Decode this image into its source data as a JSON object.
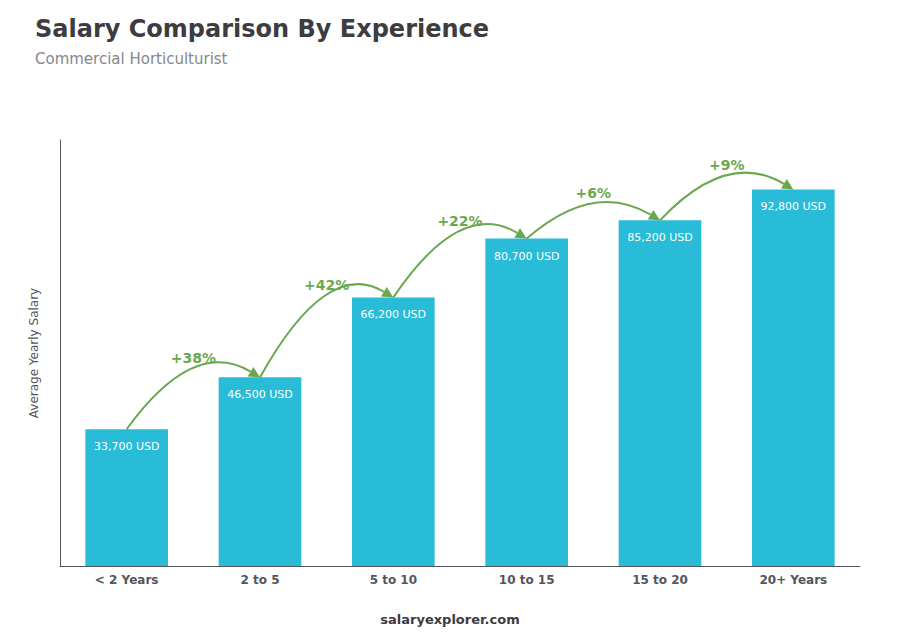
{
  "chart_data": {
    "type": "bar",
    "title": "Salary Comparison By Experience",
    "subtitle": "Commercial Horticulturist",
    "categories": [
      "< 2 Years",
      "2 to 5",
      "5 to 10",
      "10 to 15",
      "15 to 20",
      "20+ Years"
    ],
    "values": [
      33700,
      46500,
      66200,
      80700,
      85200,
      92800
    ],
    "value_labels": [
      "33,700 USD",
      "46,500 USD",
      "66,200 USD",
      "80,700 USD",
      "85,200 USD",
      "92,800 USD"
    ],
    "data_labels": true,
    "annotations": [
      "+38%",
      "+42%",
      "+22%",
      "+6%",
      "+9%"
    ],
    "ylabel": "Average Yearly Salary",
    "footer": "salaryexplorer.com",
    "color": "#29bcd8",
    "ylim": [
      0,
      105000
    ],
    "yticks": [],
    "tick_labels": "x",
    "grid": false
  }
}
